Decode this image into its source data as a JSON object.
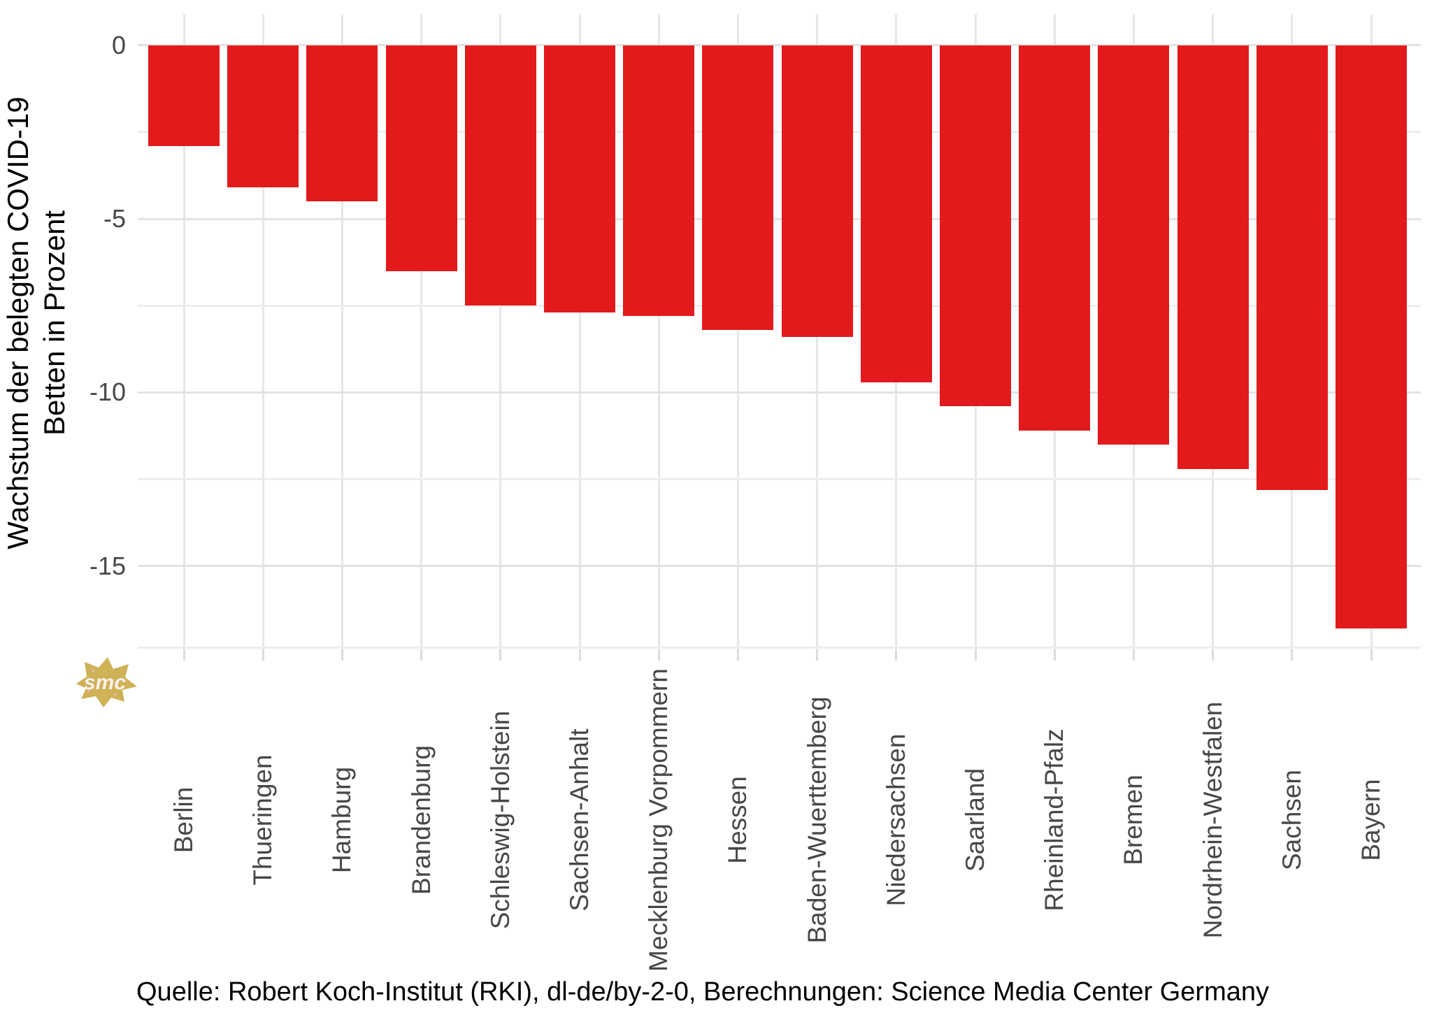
{
  "chart_data": {
    "type": "bar",
    "title": "",
    "categories": [
      "Berlin",
      "Thueringen",
      "Hamburg",
      "Brandenburg",
      "Schleswig-Holstein",
      "Sachsen-Anhalt",
      "Mecklenburg Vorpommern",
      "Hessen",
      "Baden-Wuerttemberg",
      "Niedersachsen",
      "Saarland",
      "Rheinland-Pfalz",
      "Bremen",
      "Nordrhein-Westfalen",
      "Sachsen",
      "Bayern"
    ],
    "values": [
      -2.9,
      -4.1,
      -4.5,
      -6.5,
      -7.5,
      -7.7,
      -7.8,
      -8.2,
      -8.4,
      -9.7,
      -10.4,
      -11.1,
      -11.5,
      -12.2,
      -12.8,
      -16.8
    ],
    "xlabel": "",
    "ylabel_line1": "Wachstum der belegten COVID-19",
    "ylabel_line2": "Betten in Prozent",
    "yticks": [
      0,
      -5,
      -10,
      -15
    ],
    "minor_yticks": [
      -2.5,
      -7.5,
      -12.5,
      -17.5
    ],
    "ylim": [
      -17.4,
      0.9
    ],
    "grid": true,
    "legend": "none",
    "bar_color": "#e21a1c",
    "major_grid_color": "#e2e2e2",
    "minor_grid_color": "#ededed",
    "tick_label_color": "#474747"
  },
  "footer": {
    "source_text": "Quelle: Robert Koch-Institut (RKI), dl-de/by-2-0, Berechnungen: Science Media Center Germany"
  },
  "logo": {
    "text": "smc",
    "color": "#cfb156"
  }
}
